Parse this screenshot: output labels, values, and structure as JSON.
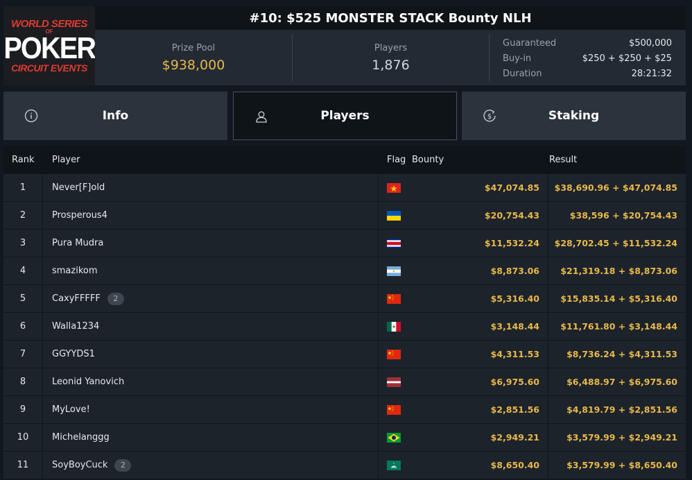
{
  "logo": {
    "line1": "WORLD SERIES",
    "line2": "OF",
    "line3": "POKER",
    "line4": "CIRCUIT EVENTS"
  },
  "event": {
    "title": "#10: $525 MONSTER STACK Bounty NLH"
  },
  "stats": {
    "prize_pool_label": "Prize Pool",
    "prize_pool_value": "$938,000",
    "players_label": "Players",
    "players_value": "1,876",
    "guaranteed_label": "Guaranteed",
    "guaranteed_value": "$500,000",
    "buyin_label": "Buy-in",
    "buyin_value": "$250 + $250 + $25",
    "duration_label": "Duration",
    "duration_value": "28:21:32"
  },
  "tabs": [
    {
      "label": "Info",
      "icon": "info-icon"
    },
    {
      "label": "Players",
      "icon": "user-icon"
    },
    {
      "label": "Staking",
      "icon": "dollar-coin-icon"
    }
  ],
  "table": {
    "headers": {
      "rank": "Rank",
      "player": "Player",
      "flag": "Flag",
      "bounty": "Bounty",
      "result": "Result"
    },
    "rows": [
      {
        "rank": "1",
        "player": "Never[F]old",
        "badge": "",
        "flag": "vietnam",
        "bounty": "$47,074.85",
        "result": "$38,690.96 + $47,074.85"
      },
      {
        "rank": "2",
        "player": "Prosperous4",
        "badge": "",
        "flag": "ukraine",
        "bounty": "$20,754.43",
        "result": "$38,596 + $20,754.43"
      },
      {
        "rank": "3",
        "player": "Pura Mudra",
        "badge": "",
        "flag": "costa-rica",
        "bounty": "$11,532.24",
        "result": "$28,702.45 + $11,532.24"
      },
      {
        "rank": "4",
        "player": "smazikom",
        "badge": "",
        "flag": "argentina",
        "bounty": "$8,873.06",
        "result": "$21,319.18 + $8,873.06"
      },
      {
        "rank": "5",
        "player": "CaxyFFFFF",
        "badge": "2",
        "flag": "china",
        "bounty": "$5,316.40",
        "result": "$15,835.14 + $5,316.40"
      },
      {
        "rank": "6",
        "player": "Walla1234",
        "badge": "",
        "flag": "mexico",
        "bounty": "$3,148.44",
        "result": "$11,761.80 + $3,148.44"
      },
      {
        "rank": "7",
        "player": "GGYYDS1",
        "badge": "",
        "flag": "china",
        "bounty": "$4,311.53",
        "result": "$8,736.24 + $4,311.53"
      },
      {
        "rank": "8",
        "player": "Leonid Yanovich",
        "badge": "",
        "flag": "latvia",
        "bounty": "$6,975.60",
        "result": "$6,488.97 + $6,975.60"
      },
      {
        "rank": "9",
        "player": "MyLove!",
        "badge": "",
        "flag": "china",
        "bounty": "$2,851.56",
        "result": "$4,819.79 + $2,851.56"
      },
      {
        "rank": "10",
        "player": "Michelanggg",
        "badge": "",
        "flag": "brazil",
        "bounty": "$2,949.21",
        "result": "$3,579.99 + $2,949.21"
      },
      {
        "rank": "11",
        "player": "SoyBoyCuck",
        "badge": "2",
        "flag": "macau",
        "bounty": "$8,650.40",
        "result": "$3,579.99 + $8,650.40"
      }
    ]
  },
  "colors": {
    "accent_gold": "#e8b84a",
    "background": "#111820",
    "panel": "#222a33"
  }
}
